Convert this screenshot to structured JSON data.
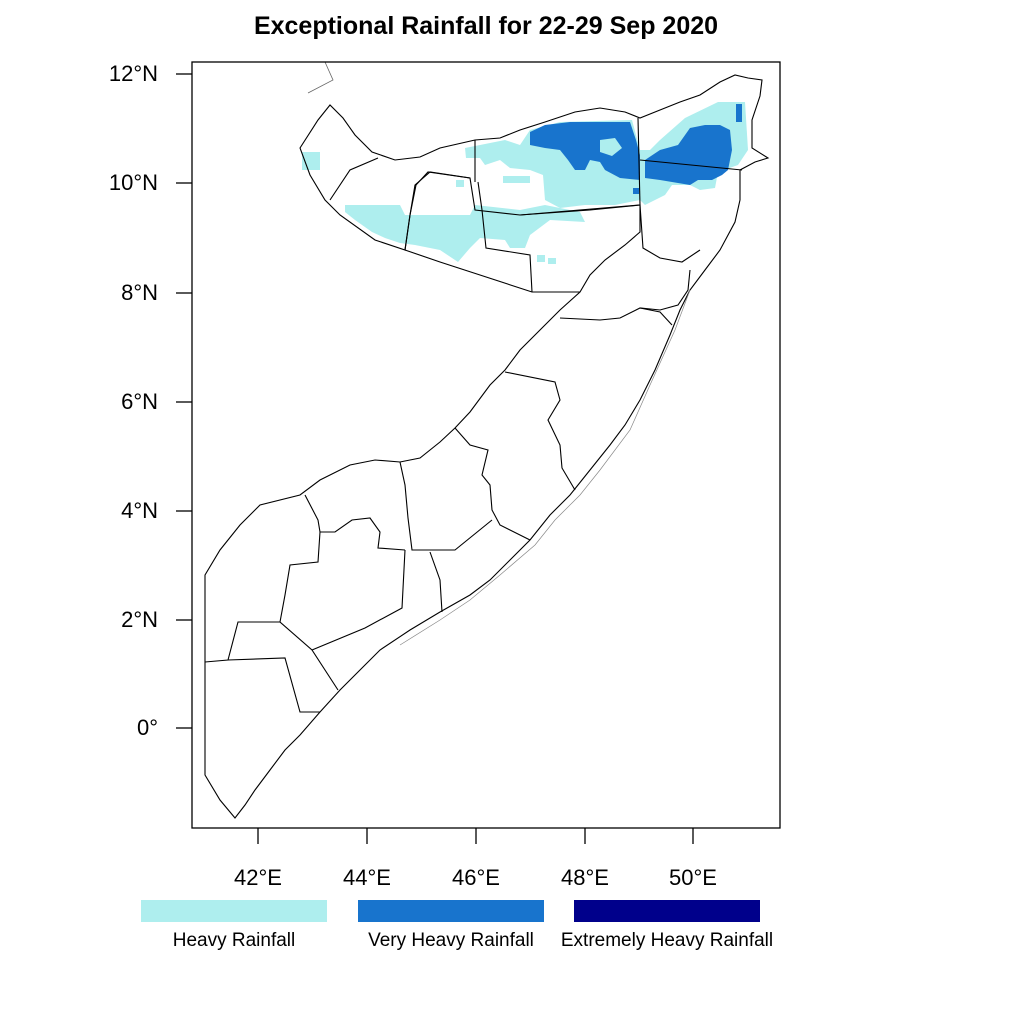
{
  "title": "Exceptional Rainfall for 22-29 Sep 2020",
  "axes": {
    "lat_labels": [
      "12°N",
      "10°N",
      "8°N",
      "6°N",
      "4°N",
      "2°N",
      "0°"
    ],
    "lon_labels": [
      "42°E",
      "44°E",
      "46°E",
      "48°E",
      "50°E"
    ]
  },
  "legend": [
    {
      "label": "Heavy Rainfall",
      "color": "#aeeeee"
    },
    {
      "label": "Very Heavy Rainfall",
      "color": "#1874cd"
    },
    {
      "label": "Extremely Heavy Rainfall",
      "color": "#00008b"
    }
  ],
  "colors": {
    "heavy": "#aeeeee",
    "very_heavy": "#1874cd",
    "extremely_heavy": "#00008b",
    "border": "#000000"
  }
}
